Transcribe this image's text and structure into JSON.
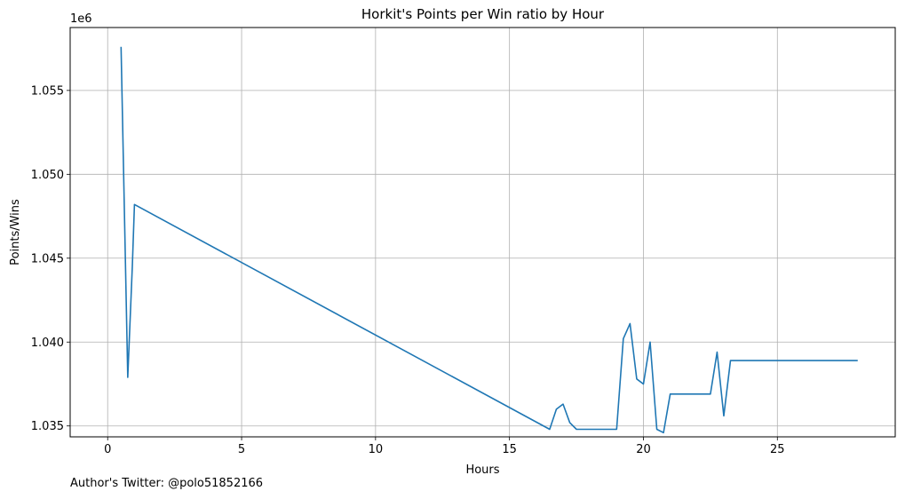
{
  "chart_data": {
    "type": "line",
    "title": "Horkit's Points per Win ratio by Hour",
    "xlabel": "Hours",
    "ylabel": "Points/Wins",
    "y_offset_label": "1e6",
    "xlim": [
      -1.4,
      29.4
    ],
    "ylim": [
      1.03435,
      1.05875
    ],
    "x_ticks": [
      0,
      5,
      10,
      15,
      20,
      25
    ],
    "x_tick_labels": [
      "0",
      "5",
      "10",
      "15",
      "20",
      "25"
    ],
    "y_ticks": [
      1.035,
      1.04,
      1.045,
      1.05,
      1.055
    ],
    "y_tick_labels": [
      "1.035",
      "1.040",
      "1.045",
      "1.050",
      "1.055"
    ],
    "grid": true,
    "color": "#1f77b4",
    "series": [
      {
        "x": [
          0.5,
          0.75,
          0.92,
          1.0,
          16.5,
          16.75,
          17.0,
          17.25,
          17.5,
          17.75,
          18.0,
          18.25,
          18.5,
          18.75,
          19.0,
          19.25,
          19.5,
          19.75,
          20.0,
          20.25,
          20.5,
          20.75,
          21.0,
          21.25,
          21.5,
          21.75,
          22.0,
          22.25,
          22.5,
          22.75,
          23.0,
          23.25,
          23.5,
          24.0,
          25.0,
          26.0,
          27.0,
          28.0
        ],
        "y": [
          1.0576,
          1.0379,
          1.0445,
          1.0482,
          1.0348,
          1.036,
          1.0363,
          1.0352,
          1.0348,
          1.0348,
          1.0348,
          1.0348,
          1.0348,
          1.0348,
          1.0348,
          1.0402,
          1.0411,
          1.0378,
          1.0375,
          1.04,
          1.0348,
          1.0346,
          1.0369,
          1.0369,
          1.0369,
          1.0369,
          1.0369,
          1.0369,
          1.0369,
          1.0394,
          1.0356,
          1.0389,
          1.0389,
          1.0389,
          1.0389,
          1.0389,
          1.0389,
          1.0389
        ]
      }
    ]
  },
  "footer_text": "Author's Twitter: @polo51852166"
}
